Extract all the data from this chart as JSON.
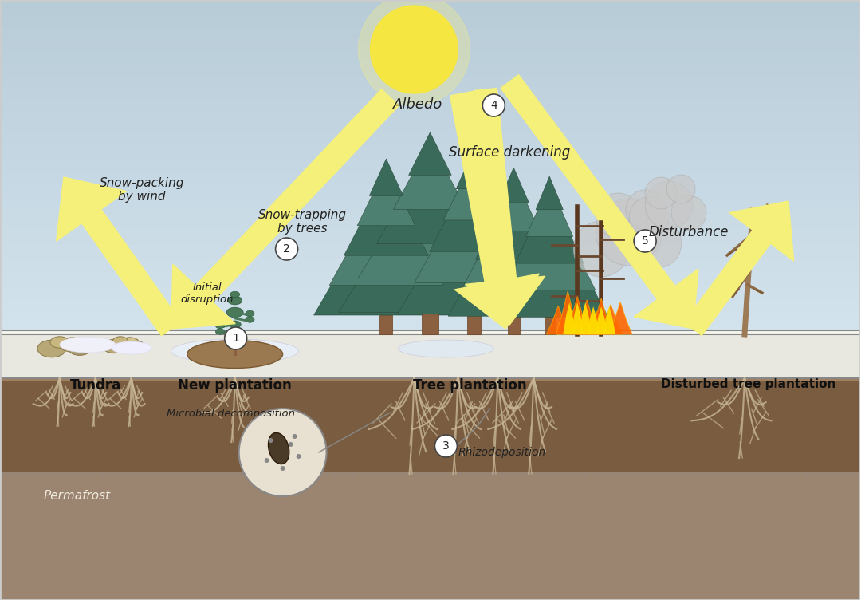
{
  "bg_sky_top": "#b8ccd8",
  "bg_sky_bottom": "#d0dde6",
  "bg_ground_top": "#f0ede5",
  "bg_ground_bottom": "#c8b89a",
  "bg_soil_top": "#8b6e52",
  "bg_soil_bottom": "#6b4e32",
  "bg_permafrost": "#9b8470",
  "sun_color": "#f5e642",
  "arrow_color": "#f5f07a",
  "labels": {
    "tundra": "Tundra",
    "new_plantation": "New plantation",
    "tree_plantation": "Tree plantation",
    "disturbed": "Disturbed tree plantation",
    "albedo": "Albedo",
    "snow_packing": "Snow-packing\nby wind",
    "snow_trapping": "Snow-trapping\nby trees",
    "surface_darkening": "Surface darkening",
    "disturbance": "Disturbance",
    "initial_disruption": "Initial\ndisruption",
    "microbial": "Microbial decomposition",
    "rhizodeposition": "Rhizodeposition",
    "permafrost": "Permafrost"
  },
  "numbered_labels": [
    "1",
    "2",
    "3",
    "4",
    "5"
  ],
  "tree_color_dark": "#3a6b5a",
  "tree_color_light": "#5a8b7a",
  "dead_tree_color": "#8b7355",
  "fire_color1": "#ff6600",
  "fire_color2": "#ffcc00",
  "smoke_color": "#c0c0c0",
  "root_color": "#d4c4a8",
  "soil_color": "#7a5c3a",
  "snow_color": "#f0f0f5"
}
